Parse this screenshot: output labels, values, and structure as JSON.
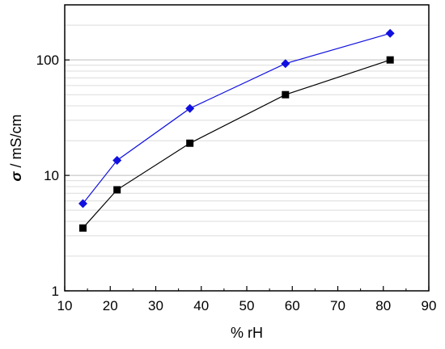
{
  "chart_data": {
    "type": "line",
    "xlabel": "% rH",
    "ylabel_symbol": "σ",
    "ylabel_unit": " / mS/cm",
    "xlim": [
      10,
      90
    ],
    "ylim": [
      1,
      300
    ],
    "yscale": "log",
    "xticks": [
      "10",
      "20",
      "30",
      "40",
      "50",
      "60",
      "70",
      "80",
      "90"
    ],
    "yticks": [
      "1",
      "10",
      "100"
    ],
    "grid": "horizontal minor lines",
    "series": [
      {
        "marker": "diamond",
        "color": "#1010e0",
        "x": [
          14,
          21.5,
          37.5,
          58.5,
          81.5
        ],
        "y": [
          5.7,
          13.5,
          38,
          93,
          170
        ]
      },
      {
        "marker": "square",
        "color": "#000000",
        "x": [
          14,
          21.5,
          37.5,
          58.5,
          81.5
        ],
        "y": [
          3.5,
          7.5,
          19,
          50,
          100
        ]
      }
    ]
  }
}
